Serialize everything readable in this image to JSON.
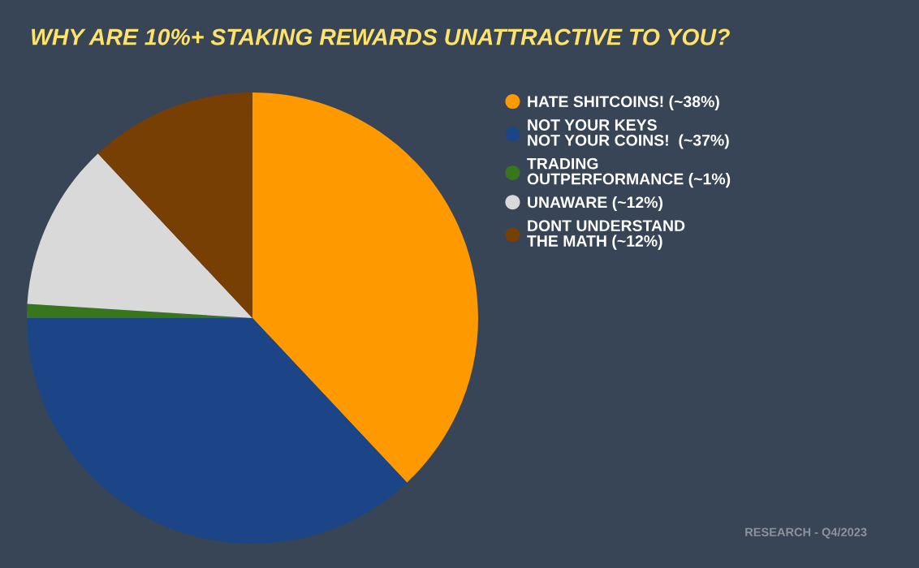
{
  "chart_data": {
    "type": "pie",
    "title": "WHY ARE 10%+ STAKING REWARDS UNATTRACTIVE TO YOU?",
    "categories": [
      "HATE SHITCOINS! (~38%)",
      "NOT YOUR KEYS\nNOT YOUR COINS!  (~37%)",
      "TRADING\nOUTPERFORMANCE (~1%)",
      "UNAWARE (~12%)",
      "DONT UNDERSTAND\nTHE MATH (~12%)"
    ],
    "values": [
      38,
      37,
      1,
      12,
      12
    ],
    "colors": [
      "#ff9900",
      "#1c4587",
      "#38761d",
      "#d9d9d9",
      "#783f04"
    ],
    "legend": "top right",
    "marker": "circle",
    "annotations": [
      "RESEARCH - Q4/2023"
    ]
  }
}
